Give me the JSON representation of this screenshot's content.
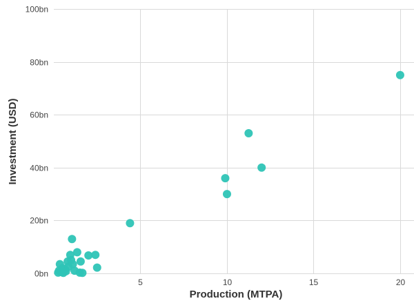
{
  "chart_data": {
    "type": "scatter",
    "title": "",
    "xlabel": "Production (MTPA)",
    "ylabel": "Investment (USD)",
    "xlim": [
      0,
      20.8
    ],
    "ylim": [
      0,
      100
    ],
    "x_ticks": [
      {
        "value": 5,
        "label": "5"
      },
      {
        "value": 10,
        "label": "10"
      },
      {
        "value": 15,
        "label": "15"
      },
      {
        "value": 20,
        "label": "20"
      }
    ],
    "y_ticks": [
      {
        "value": 0,
        "label": "0bn"
      },
      {
        "value": 20,
        "label": "20bn"
      },
      {
        "value": 40,
        "label": "40bn"
      },
      {
        "value": 60,
        "label": "60bn"
      },
      {
        "value": 80,
        "label": "80bn"
      },
      {
        "value": 100,
        "label": "100bn"
      }
    ],
    "grid": {
      "x": true,
      "y": true
    },
    "marker_color": "#2ec4b6",
    "points": [
      {
        "x": 0.25,
        "y": 0.3
      },
      {
        "x": 0.3,
        "y": 1.0
      },
      {
        "x": 0.35,
        "y": 3.5
      },
      {
        "x": 0.45,
        "y": 0.5
      },
      {
        "x": 0.5,
        "y": 2.0
      },
      {
        "x": 0.55,
        "y": 0.2
      },
      {
        "x": 0.65,
        "y": 1.5
      },
      {
        "x": 0.7,
        "y": 0.8
      },
      {
        "x": 0.8,
        "y": 4.5
      },
      {
        "x": 0.85,
        "y": 2.5
      },
      {
        "x": 0.95,
        "y": 7.0
      },
      {
        "x": 1.0,
        "y": 5.0
      },
      {
        "x": 1.05,
        "y": 13.0
      },
      {
        "x": 1.1,
        "y": 3.5
      },
      {
        "x": 1.2,
        "y": 1.0
      },
      {
        "x": 1.35,
        "y": 8.0
      },
      {
        "x": 1.5,
        "y": 0.3
      },
      {
        "x": 1.55,
        "y": 4.5
      },
      {
        "x": 1.65,
        "y": 0.2
      },
      {
        "x": 2.0,
        "y": 6.8
      },
      {
        "x": 2.4,
        "y": 7.0
      },
      {
        "x": 2.5,
        "y": 2.2
      },
      {
        "x": 4.4,
        "y": 19.0
      },
      {
        "x": 9.9,
        "y": 36.0
      },
      {
        "x": 10.0,
        "y": 30.0
      },
      {
        "x": 11.25,
        "y": 53.0
      },
      {
        "x": 12.0,
        "y": 40.0
      },
      {
        "x": 20.0,
        "y": 75.0
      }
    ]
  }
}
